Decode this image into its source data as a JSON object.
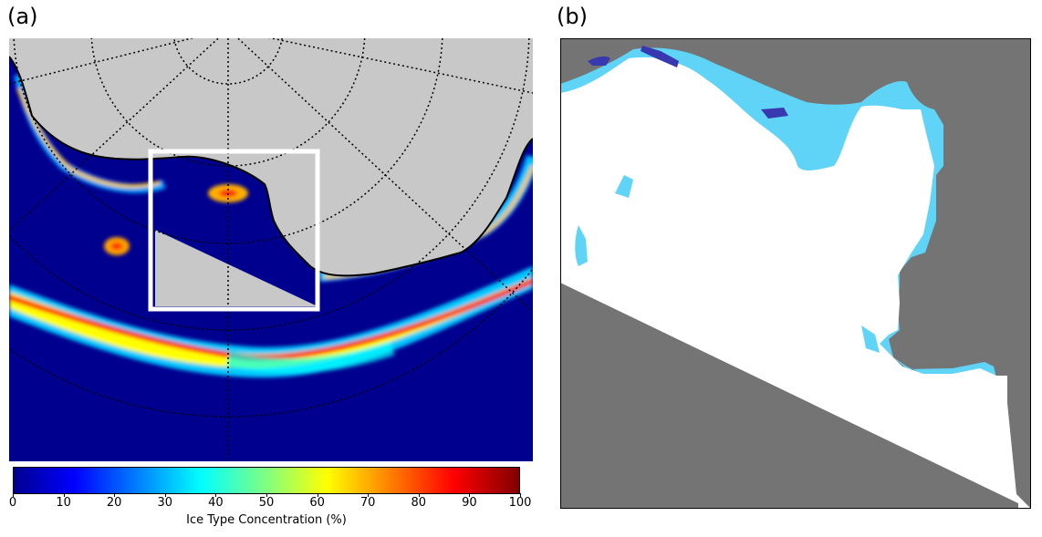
{
  "panels": {
    "a": {
      "label": "(a)"
    },
    "b": {
      "label": "(b)"
    }
  },
  "colorbar": {
    "label": "Ice Type Concentration (%)",
    "ticks": [
      "0",
      "10",
      "20",
      "30",
      "40",
      "50",
      "60",
      "70",
      "80",
      "90",
      "100"
    ],
    "colormap": [
      "#00008f",
      "#0000ff",
      "#0080ff",
      "#00ffff",
      "#80ff80",
      "#ffff00",
      "#ff8000",
      "#ff0000",
      "#800000"
    ]
  },
  "colors": {
    "land": "#c8c8c8",
    "ocean_zero": "#00008f",
    "coastline": "#000000",
    "box": "#ffffff",
    "b_background": "#747474",
    "b_ice_main": "#ffffff",
    "b_ice_secondary": "#5fd4f7",
    "b_ice_tertiary": "#3838b0"
  }
}
